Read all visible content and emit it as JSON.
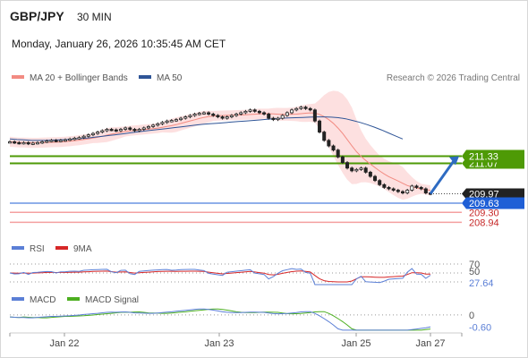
{
  "header": {
    "symbol": "GBP/JPY",
    "timeframe": "30 MIN",
    "datetime": "Monday, January 26, 2026 10:35:45 AM CET",
    "credit": "Research © 2026 Trading Central"
  },
  "legends": {
    "price": [
      {
        "label": "MA 20 + Bollinger Bands",
        "color": "#f28b82"
      },
      {
        "label": "MA 50",
        "color": "#2f5597"
      }
    ],
    "rsi": [
      {
        "label": "RSI",
        "color": "#5b7fd6"
      },
      {
        "label": "9MA",
        "color": "#d62728"
      }
    ],
    "macd": [
      {
        "label": "MACD",
        "color": "#5b7fd6"
      },
      {
        "label": "MACD Signal",
        "color": "#4caf20"
      }
    ]
  },
  "colors": {
    "resistance": "#4e9a06",
    "support_pivot": "#1f5fd6",
    "support": "#f4a0a0",
    "bollinger_fill": "#fde0e0",
    "candle": "#222222",
    "arrow": "#2e6bc2",
    "last_price_bg": "#222222"
  },
  "chart_data": {
    "type": "candlestick",
    "x_tick_labels": [
      "Jan 22",
      "Jan 23",
      "Jan 25",
      "Jan 27"
    ],
    "price_levels": {
      "resistance_upper": 211.33,
      "resistance_lower": 211.07,
      "last_price": 209.97,
      "pivot": 209.63,
      "support_upper": 209.3,
      "support_lower": 208.94
    },
    "price_label_texts": [
      "211.33",
      "211.07",
      "209.97",
      "209.63",
      "209.30",
      "208.94"
    ],
    "price_range": [
      208.5,
      213.9
    ],
    "close": [
      211.85,
      211.82,
      211.8,
      211.82,
      211.78,
      211.8,
      211.82,
      211.85,
      211.88,
      211.9,
      211.88,
      211.9,
      211.92,
      211.95,
      211.98,
      212.0,
      212.05,
      212.1,
      212.15,
      212.2,
      212.25,
      212.3,
      212.28,
      212.25,
      212.3,
      212.35,
      212.3,
      212.25,
      212.3,
      212.35,
      212.4,
      212.45,
      212.5,
      212.55,
      212.6,
      212.62,
      212.65,
      212.7,
      212.75,
      212.8,
      212.85,
      212.88,
      212.9,
      212.85,
      212.8,
      212.75,
      212.7,
      212.75,
      212.8,
      212.85,
      212.9,
      212.95,
      213.0,
      212.95,
      212.9,
      212.85,
      212.7,
      212.65,
      212.7,
      212.8,
      212.9,
      213.0,
      213.05,
      213.1,
      213.05,
      213.0,
      212.6,
      212.2,
      211.9,
      211.7,
      211.55,
      211.3,
      211.1,
      210.9,
      210.8,
      210.85,
      210.9,
      210.75,
      210.6,
      210.45,
      210.3,
      210.2,
      210.15,
      210.1,
      210.05,
      210.0,
      210.1,
      210.25,
      210.2,
      210.15,
      210.0,
      209.97
    ],
    "ma50": [
      211.95,
      211.93,
      211.92,
      211.9,
      211.9,
      211.9,
      211.91,
      211.92,
      211.93,
      211.95,
      211.97,
      211.99,
      212.02,
      212.05,
      212.08,
      212.11,
      212.14,
      212.18,
      212.21,
      212.24,
      212.27,
      212.3,
      212.33,
      212.36,
      212.39,
      212.42,
      212.45,
      212.48,
      212.5,
      212.52,
      212.54,
      212.56,
      212.58,
      212.6,
      212.62,
      212.64,
      212.66,
      212.68,
      212.7,
      212.71,
      212.72,
      212.73,
      212.74,
      212.75,
      212.75,
      212.74,
      212.72,
      212.68,
      212.62,
      212.55,
      212.47,
      212.38,
      212.28,
      212.17,
      212.06,
      211.95
    ],
    "rsi": {
      "levels": [
        70,
        50,
        30
      ],
      "last_value": 27.64,
      "labels": [
        "70",
        "50",
        "27.64"
      ]
    },
    "macd": {
      "zero_label": "0",
      "last_value": -0.6,
      "last_label": "-0.60"
    },
    "annotation": "arrow pointing up from last price toward 211.33 resistance"
  }
}
